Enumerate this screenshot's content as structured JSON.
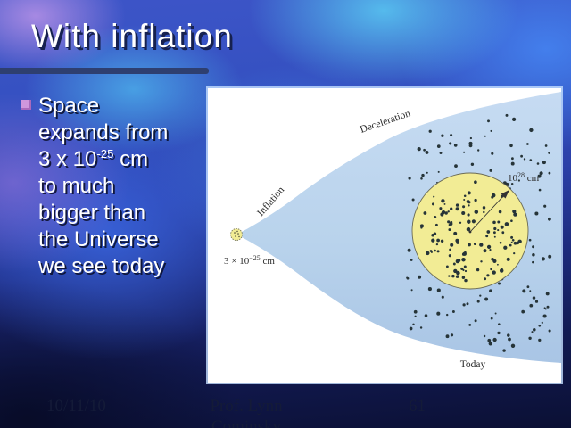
{
  "slide": {
    "title": "With inflation",
    "bullet": {
      "l1": "Space",
      "l2": "expands from",
      "l3a": "3 x 10",
      "l3sup": "-25",
      "l3b": " cm",
      "l4": "to much",
      "l5": "bigger than",
      "l6": "the Universe",
      "l7": "we see today"
    },
    "footer": {
      "date": "10/11/10",
      "presenter_line1": "Prof. Lynn",
      "presenter_line2": "Cominsky",
      "slide_number": "61"
    }
  },
  "figure": {
    "inflation_label": "Inflation",
    "deceleration_label": "Deceleration",
    "start_size_base": "3 × 10",
    "start_size_exp": "−25",
    "start_size_unit": " cm",
    "end_size_base": "10",
    "end_size_exp": "28",
    "end_size_unit": " cm",
    "today_label": "Today",
    "colors": {
      "space_fill_top": "#c6dbf2",
      "space_fill_bottom": "#aac6e6",
      "sphere_fill": "#f2ec95",
      "sphere_stroke": "#6b6b55",
      "dot_color": "#263438",
      "panel_bg": "#ffffff",
      "accent_bar": "#2e3f70",
      "bullet_marker": "#cf97dd"
    }
  }
}
